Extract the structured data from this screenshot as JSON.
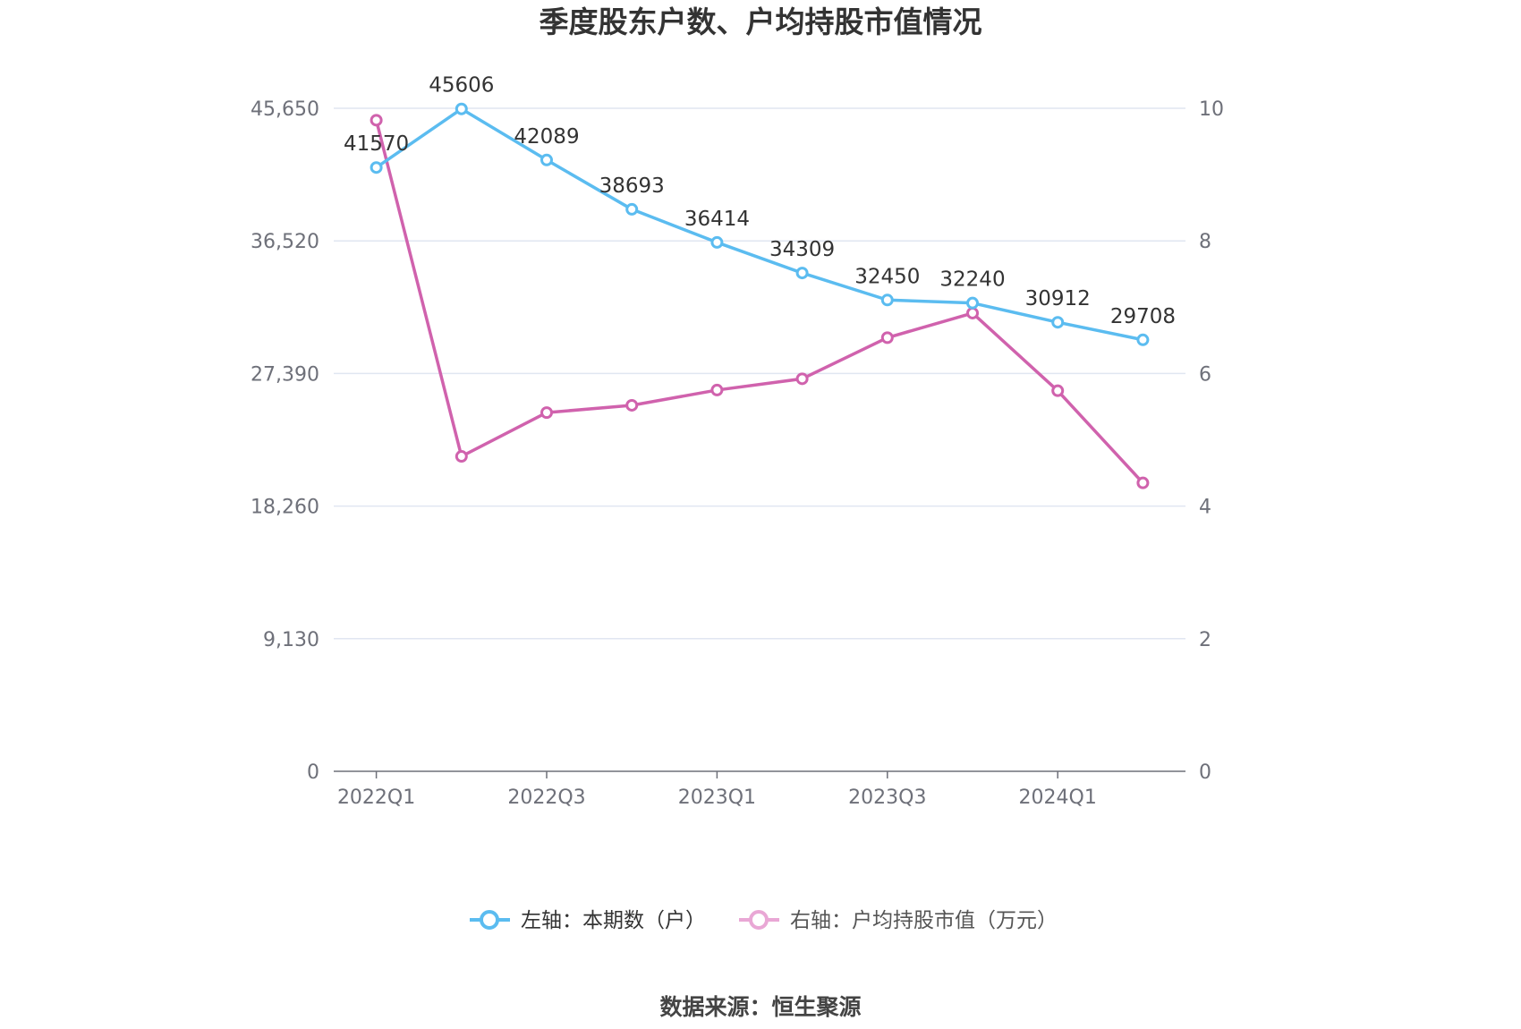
{
  "chart_data": {
    "type": "line",
    "title": "季度股东户数、户均持股市值情况",
    "categories": [
      "2022Q1",
      "2022Q2",
      "2022Q3",
      "2022Q4",
      "2023Q1",
      "2023Q2",
      "2023Q3",
      "2023Q4",
      "2024Q1",
      "2024Q2"
    ],
    "x_tick_labels": [
      "2022Q1",
      "2022Q3",
      "2023Q1",
      "2023Q3",
      "2024Q1"
    ],
    "y_left": {
      "min": 0,
      "max": 45650,
      "ticks": [
        "0",
        "9,130",
        "18,260",
        "27,390",
        "36,520",
        "45,650"
      ],
      "tick_values": [
        0,
        9130,
        18260,
        27390,
        36520,
        45650
      ]
    },
    "y_right": {
      "min": 0,
      "max": 10,
      "ticks": [
        "0",
        "2",
        "4",
        "6",
        "8",
        "10"
      ],
      "tick_values": [
        0,
        2,
        4,
        6,
        8,
        10
      ]
    },
    "series": [
      {
        "name": "左轴：本期数（户）",
        "axis": "left",
        "color": "#5bbcf0",
        "values": [
          41570,
          45606,
          42089,
          38693,
          36414,
          34309,
          32450,
          32240,
          30912,
          29708
        ],
        "labels": [
          "41570",
          "45606",
          "42089",
          "38693",
          "36414",
          "34309",
          "32450",
          "32240",
          "30912",
          "29708"
        ]
      },
      {
        "name": "右轴：户均持股市值（万元）",
        "axis": "right",
        "color": "#d062ad",
        "values": [
          9.82,
          4.75,
          5.41,
          5.52,
          5.75,
          5.92,
          6.54,
          6.91,
          5.74,
          4.35
        ]
      }
    ],
    "grid": true,
    "legend_position": "bottom"
  },
  "source": "数据来源：恒生聚源"
}
